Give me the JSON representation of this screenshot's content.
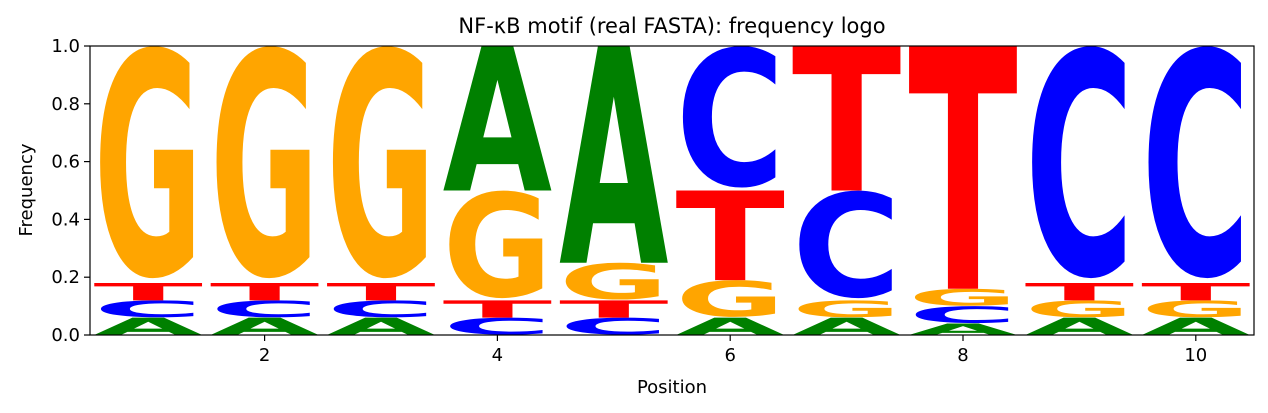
{
  "chart_data": {
    "type": "sequence-logo",
    "title": "NF-κB motif (real FASTA): frequency logo",
    "xlabel": "Position",
    "ylabel": "Frequency",
    "ylim": [
      0,
      1.0
    ],
    "xlim": [
      0.5,
      10.5
    ],
    "yticks": [
      0.0,
      0.2,
      0.4,
      0.6,
      0.8,
      1.0
    ],
    "ytick_labels": [
      "0.0",
      "0.2",
      "0.4",
      "0.6",
      "0.8",
      "1.0"
    ],
    "xticks": [
      2,
      4,
      6,
      8,
      10
    ],
    "xtick_labels": [
      "2",
      "4",
      "6",
      "8",
      "10"
    ],
    "grid": false,
    "colors": {
      "A": "#008000",
      "C": "#0000ff",
      "G": "#ffa500",
      "T": "#ff0000"
    },
    "positions": [
      {
        "position": 1,
        "stack": [
          {
            "base": "A",
            "freq": 0.06
          },
          {
            "base": "C",
            "freq": 0.06
          },
          {
            "base": "T",
            "freq": 0.06
          },
          {
            "base": "G",
            "freq": 0.82
          }
        ]
      },
      {
        "position": 2,
        "stack": [
          {
            "base": "A",
            "freq": 0.06
          },
          {
            "base": "C",
            "freq": 0.06
          },
          {
            "base": "T",
            "freq": 0.06
          },
          {
            "base": "G",
            "freq": 0.82
          }
        ]
      },
      {
        "position": 3,
        "stack": [
          {
            "base": "A",
            "freq": 0.06
          },
          {
            "base": "C",
            "freq": 0.06
          },
          {
            "base": "T",
            "freq": 0.06
          },
          {
            "base": "G",
            "freq": 0.82
          }
        ]
      },
      {
        "position": 4,
        "stack": [
          {
            "base": "C",
            "freq": 0.06
          },
          {
            "base": "T",
            "freq": 0.06
          },
          {
            "base": "G",
            "freq": 0.38
          },
          {
            "base": "A",
            "freq": 0.5
          }
        ]
      },
      {
        "position": 5,
        "stack": [
          {
            "base": "C",
            "freq": 0.06
          },
          {
            "base": "T",
            "freq": 0.06
          },
          {
            "base": "G",
            "freq": 0.13
          },
          {
            "base": "A",
            "freq": 0.75
          }
        ]
      },
      {
        "position": 6,
        "stack": [
          {
            "base": "A",
            "freq": 0.06
          },
          {
            "base": "G",
            "freq": 0.13
          },
          {
            "base": "T",
            "freq": 0.31
          },
          {
            "base": "C",
            "freq": 0.5
          }
        ]
      },
      {
        "position": 7,
        "stack": [
          {
            "base": "A",
            "freq": 0.06
          },
          {
            "base": "G",
            "freq": 0.06
          },
          {
            "base": "C",
            "freq": 0.38
          },
          {
            "base": "T",
            "freq": 0.5
          }
        ]
      },
      {
        "position": 8,
        "stack": [
          {
            "base": "A",
            "freq": 0.04
          },
          {
            "base": "C",
            "freq": 0.06
          },
          {
            "base": "G",
            "freq": 0.06
          },
          {
            "base": "T",
            "freq": 0.84
          }
        ]
      },
      {
        "position": 9,
        "stack": [
          {
            "base": "A",
            "freq": 0.06
          },
          {
            "base": "G",
            "freq": 0.06
          },
          {
            "base": "T",
            "freq": 0.06
          },
          {
            "base": "C",
            "freq": 0.82
          }
        ]
      },
      {
        "position": 10,
        "stack": [
          {
            "base": "A",
            "freq": 0.06
          },
          {
            "base": "G",
            "freq": 0.06
          },
          {
            "base": "T",
            "freq": 0.06
          },
          {
            "base": "C",
            "freq": 0.82
          }
        ]
      }
    ]
  }
}
